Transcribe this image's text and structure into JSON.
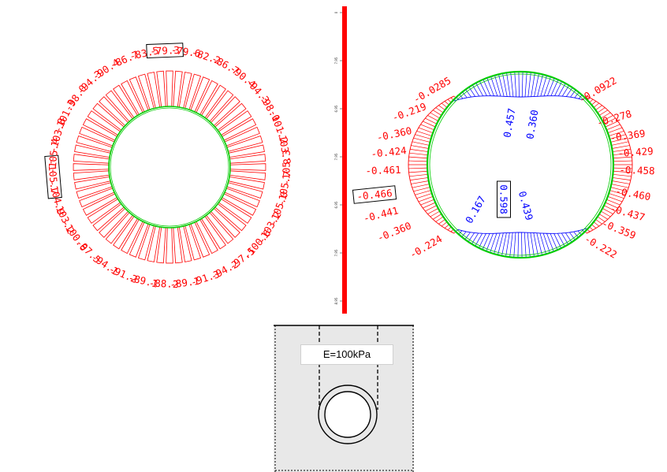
{
  "colors": {
    "outer_load": "#ff0000",
    "inner_ring": "#00cc00",
    "positive_load": "#0000ff",
    "ruler": "#ff0000",
    "scene_fill": "#e8e8e8"
  },
  "left_diagram": {
    "labels": [
      "-79.6",
      "-82.2",
      "-86.7",
      "-90.4",
      "-94.3",
      "-98.0",
      "-101.2",
      "-103.8",
      "-105.3",
      "-105.7",
      "-105.0",
      "-103.2",
      "-100.6",
      "-97.5",
      "-94.2",
      "-91.3",
      "-89.1",
      "-88.2",
      "-89.1",
      "-91.2",
      "-94.1",
      "-97.5",
      "-100.6",
      "-103.2",
      "-104.9",
      "-105.7",
      "-105.4",
      "-103.8",
      "-101.3",
      "-98.0",
      "-94.3",
      "-90.4",
      "-86.7",
      "-83.5",
      "-79.3"
    ],
    "boxed": [
      "-79.3",
      "-105.7"
    ]
  },
  "ruler": {
    "ticks": [
      "0",
      "7.95",
      "6.95",
      "7.95",
      "6.95",
      "7.95",
      "8.95"
    ]
  },
  "right_diagram": {
    "left_labels": [
      "-0.0285",
      "-0.219",
      "-0.360",
      "-0.424",
      "-0.461",
      "-0.466",
      "-0.441",
      "-0.360",
      "-0.224"
    ],
    "right_labels": [
      "-0.0922",
      "-0.278",
      "-0.369",
      "-0.429",
      "-0.458",
      "-0.460",
      "-0.437",
      "-0.359",
      "-0.222"
    ],
    "top_labels": [
      "0.457",
      "0.360"
    ],
    "bottom_labels": [
      "0.167",
      "0.598",
      "0.439"
    ],
    "boxed": [
      "-0.466",
      "0.598"
    ]
  },
  "inset": {
    "modulus_label": "E=100kPa"
  }
}
